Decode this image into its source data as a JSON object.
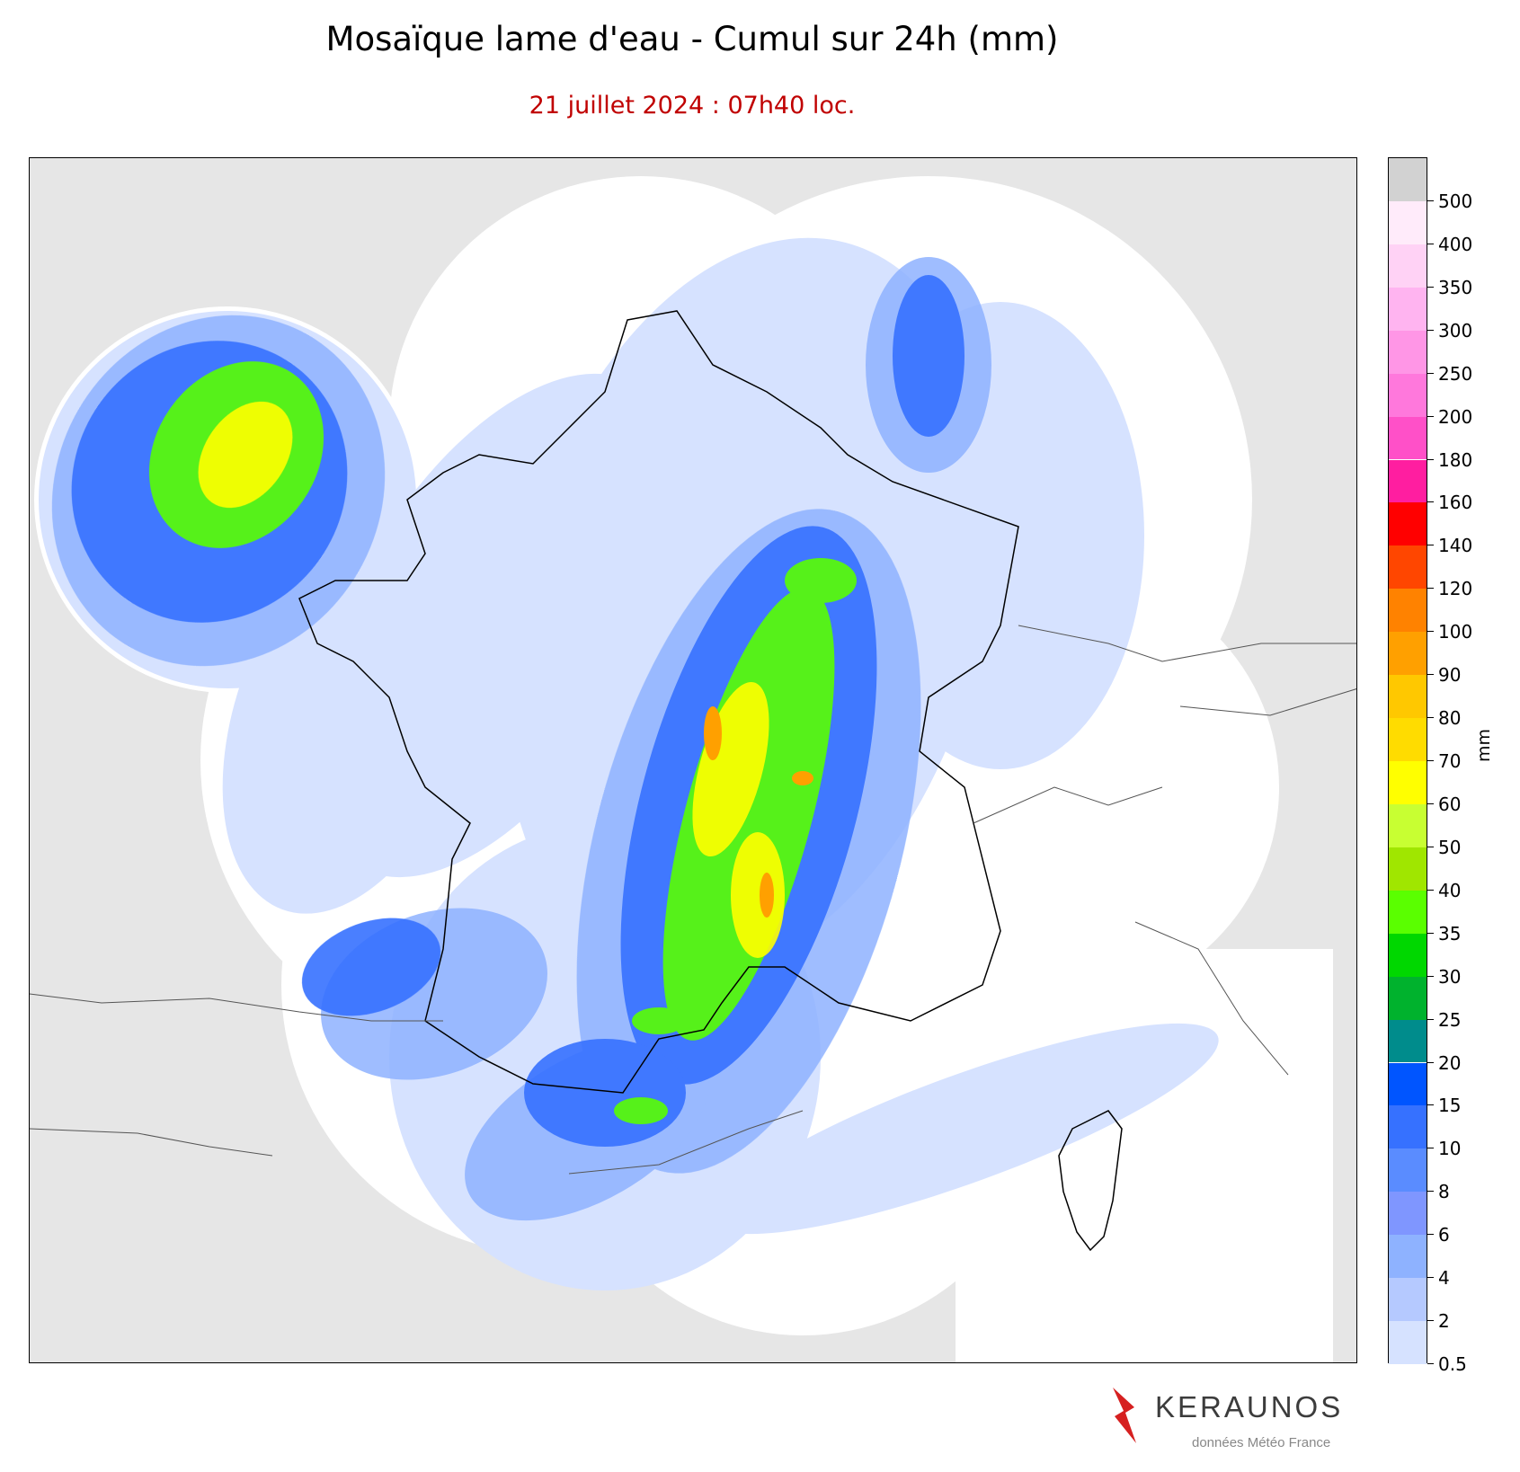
{
  "header": {
    "title": "Mosaïque lame d'eau - Cumul sur 24h (mm)",
    "subtitle": "21 juillet 2024 : 07h40 loc."
  },
  "colorbar": {
    "unit": "mm",
    "ticks": [
      "0.5",
      "2",
      "4",
      "6",
      "8",
      "10",
      "15",
      "20",
      "25",
      "30",
      "35",
      "40",
      "50",
      "60",
      "70",
      "80",
      "90",
      "100",
      "120",
      "140",
      "160",
      "180",
      "200",
      "250",
      "300",
      "350",
      "400",
      "500"
    ],
    "colors": [
      "#d6e2ff",
      "#b5c9ff",
      "#8eb2ff",
      "#7f96ff",
      "#5a8cff",
      "#3671ff",
      "#0055ff",
      "#008c8c",
      "#00b22d",
      "#00d700",
      "#5aff00",
      "#a0e600",
      "#c8ff32",
      "#ffff00",
      "#ffdc00",
      "#ffc800",
      "#ffa000",
      "#ff8200",
      "#ff4600",
      "#ff0000",
      "#ff1ea0",
      "#ff50c8",
      "#ff78dc",
      "#ff96e6",
      "#ffb4f0",
      "#ffd2f5",
      "#ffebfa",
      "#d2d2d2"
    ]
  },
  "brand": {
    "name": "KERAUNOS",
    "credit": "données Météo France"
  }
}
